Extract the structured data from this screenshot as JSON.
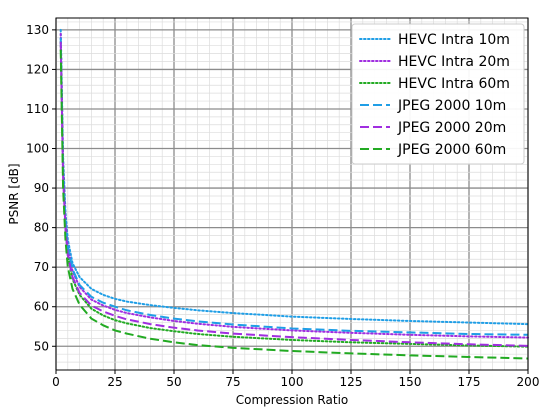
{
  "chart_data": {
    "type": "line",
    "title": "",
    "xlabel": "Compression Ratio",
    "ylabel": "PSNR [dB]",
    "xlim": [
      0,
      200
    ],
    "ylim": [
      44,
      133
    ],
    "xticks": [
      0,
      25,
      50,
      75,
      100,
      125,
      150,
      175,
      200
    ],
    "yticks": [
      50,
      60,
      70,
      80,
      90,
      100,
      110,
      120,
      130
    ],
    "grid": "major and minor",
    "legend_position": "top-right",
    "x": [
      2,
      3,
      4,
      5,
      7,
      10,
      15,
      20,
      25,
      30,
      40,
      50,
      60,
      75,
      100,
      125,
      150,
      175,
      200
    ],
    "series": [
      {
        "name": "HEVC Intra 10m",
        "color": "#1f9ee6",
        "style": "dotted",
        "values": [
          130.0,
          98.0,
          84.0,
          77.0,
          71.0,
          67.5,
          64.5,
          63.0,
          62.0,
          61.3,
          60.4,
          59.7,
          59.1,
          58.4,
          57.5,
          56.9,
          56.4,
          56.0,
          55.6
        ]
      },
      {
        "name": "HEVC Intra 20m",
        "color": "#a02ee0",
        "style": "dotted",
        "values": [
          129.0,
          96.0,
          82.0,
          75.0,
          69.0,
          65.0,
          61.8,
          60.3,
          59.2,
          58.4,
          57.3,
          56.4,
          55.7,
          54.9,
          54.0,
          53.4,
          52.9,
          52.5,
          52.2
        ]
      },
      {
        "name": "HEVC Intra 60m",
        "color": "#22aa22",
        "style": "dotted",
        "values": [
          127.0,
          94.0,
          80.0,
          73.0,
          67.0,
          63.0,
          59.5,
          57.8,
          56.6,
          55.8,
          54.6,
          53.8,
          53.1,
          52.4,
          51.6,
          51.0,
          50.6,
          50.2,
          49.9
        ]
      },
      {
        "name": "JPEG 2000 10m",
        "color": "#1f9ee6",
        "style": "dashed",
        "values": [
          128.0,
          95.0,
          82.0,
          75.0,
          69.5,
          65.5,
          62.5,
          61.0,
          60.0,
          59.1,
          57.9,
          57.0,
          56.3,
          55.5,
          54.5,
          53.9,
          53.5,
          53.1,
          52.9
        ]
      },
      {
        "name": "JPEG 2000 20m",
        "color": "#a02ee0",
        "style": "dashed",
        "values": [
          127.0,
          93.0,
          80.0,
          73.0,
          67.5,
          63.5,
          60.3,
          58.8,
          57.7,
          56.8,
          55.6,
          54.7,
          54.0,
          53.2,
          52.3,
          51.6,
          51.0,
          50.5,
          50.1
        ]
      },
      {
        "name": "JPEG 2000 60m",
        "color": "#22aa22",
        "style": "dashed",
        "values": [
          125.0,
          90.0,
          77.0,
          70.0,
          64.5,
          60.5,
          57.0,
          55.3,
          54.0,
          53.2,
          51.9,
          51.0,
          50.3,
          49.6,
          48.8,
          48.2,
          47.7,
          47.3,
          46.9
        ]
      }
    ]
  }
}
